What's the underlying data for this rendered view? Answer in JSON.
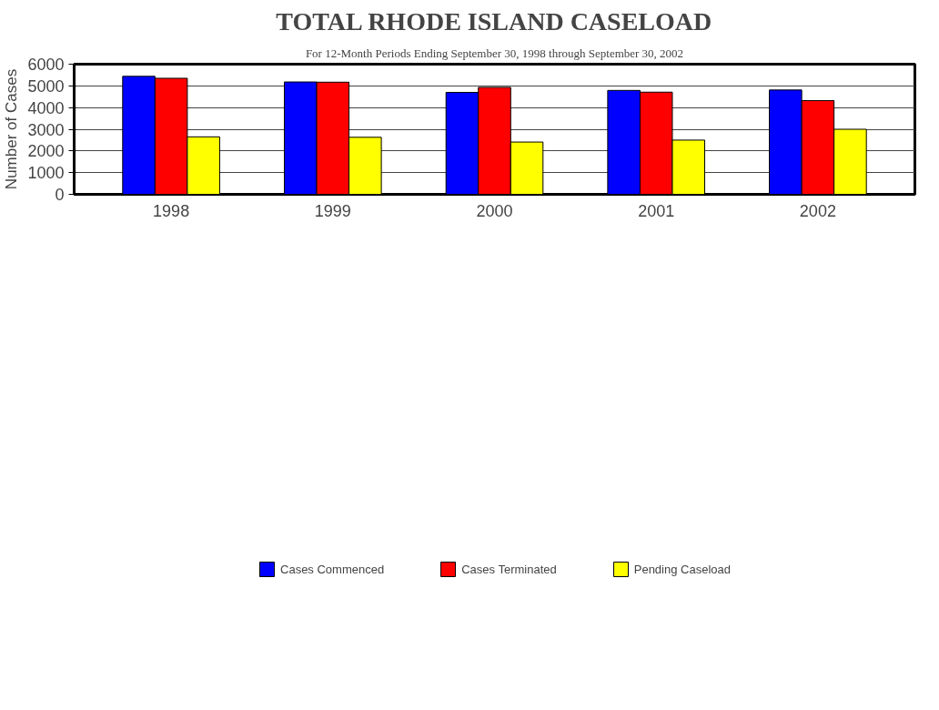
{
  "chart_data": {
    "type": "bar",
    "title": "TOTAL RHODE ISLAND CASELOAD",
    "subtitle": "For 12-Month Periods Ending September 30, 1998 through September 30, 2002",
    "ylabel": "Number of Cases",
    "categories": [
      "1998",
      "1999",
      "2000",
      "2001",
      "2002"
    ],
    "series": [
      {
        "name": "Cases Commenced",
        "color": "#0000ff",
        "values": [
          5440,
          5180,
          4700,
          4790,
          4810
        ]
      },
      {
        "name": "Cases Terminated",
        "color": "#ff0000",
        "values": [
          5350,
          5170,
          4930,
          4710,
          4320
        ]
      },
      {
        "name": "Pending Caseload",
        "color": "#ffff00",
        "values": [
          2650,
          2630,
          2410,
          2500,
          3000
        ]
      }
    ],
    "ylim": [
      0,
      6000
    ],
    "yticks": [
      0,
      1000,
      2000,
      3000,
      4000,
      5000,
      6000
    ],
    "grid": "y",
    "legend": "bottom"
  }
}
